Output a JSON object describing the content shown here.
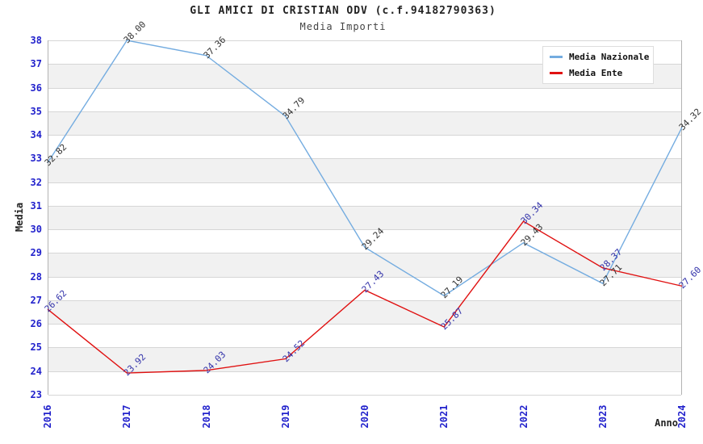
{
  "chart_data": {
    "type": "line",
    "title": "GLI AMICI DI CRISTIAN ODV (c.f.94182790363)",
    "subtitle": "Media Importi",
    "xlabel": "Anno",
    "ylabel": "Media",
    "categories": [
      "2016",
      "2017",
      "2018",
      "2019",
      "2020",
      "2021",
      "2022",
      "2023",
      "2024"
    ],
    "ylim": [
      23,
      38
    ],
    "ytick_step": 1,
    "grid": true,
    "alternating_bands": true,
    "legend_position": "top-right",
    "value_label_decimals": 2,
    "series": [
      {
        "name": "Media Nazionale",
        "color": "#74ace0",
        "label_color": "#333333",
        "values": [
          32.82,
          38.0,
          37.36,
          34.79,
          29.24,
          27.19,
          29.43,
          27.71,
          34.32
        ]
      },
      {
        "name": "Media Ente",
        "color": "#e01111",
        "label_color": "#3333aa",
        "values": [
          26.62,
          23.92,
          24.03,
          24.52,
          27.43,
          25.87,
          30.34,
          28.37,
          27.6
        ]
      }
    ]
  },
  "colors": {
    "background": "#ffffff",
    "tick_label": "#2222cc",
    "grid_line": "#d6d6d6",
    "band_alt": "#f1f1f1",
    "axis_border": "#b3b3b3",
    "title": "#222222",
    "subtitle": "#444444",
    "legend_border": "#dddddd"
  }
}
